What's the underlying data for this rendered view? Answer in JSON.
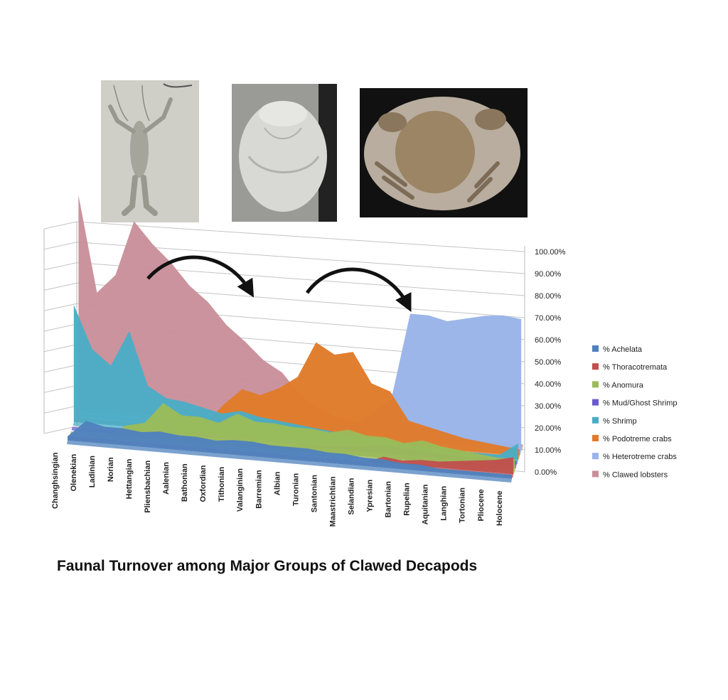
{
  "caption": "Faunal Turnover among Major Groups of Clawed Decapods",
  "photos": [
    {
      "name": "lobster-fossil-photo",
      "subject": "fossil clawed lobster"
    },
    {
      "name": "crab-carapace-fossil-photo",
      "subject": "fossil crab carapace"
    },
    {
      "name": "crab-fossil-photo",
      "subject": "fossil crab with claws"
    }
  ],
  "chart_data": {
    "type": "area",
    "perspective": "3d",
    "title": "",
    "xlabel": "",
    "ylabel": "",
    "ylim": [
      0,
      1
    ],
    "y_ticks": [
      "0.00%",
      "10.00%",
      "20.00%",
      "30.00%",
      "40.00%",
      "50.00%",
      "60.00%",
      "70.00%",
      "80.00%",
      "90.00%",
      "100.00%"
    ],
    "grid": true,
    "legend_position": "right",
    "x_tick_labels": [
      "Changhsingian",
      "Olenekian",
      "Ladinian",
      "Norian",
      "Hettangian",
      "Pliensbachian",
      "Aalenian",
      "Bathonian",
      "Oxfordian",
      "Tithonian",
      "Valanginian",
      "Barremian",
      "Albian",
      "Turonian",
      "Santonian",
      "Maastrichtian",
      "Selandian",
      "Ypresian",
      "Bartonian",
      "Rupelian",
      "Aquitanian",
      "Langhian",
      "Tortonian",
      "Pliocene",
      "Holocene"
    ],
    "x": [
      "Changhsingian",
      "Olenekian",
      "Ladinian",
      "Norian",
      "Hettangian",
      "Pliensbachian",
      "Aalenian",
      "Bathonian",
      "Oxfordian",
      "Tithonian",
      "Valanginian",
      "Barremian",
      "Albian",
      "Turonian",
      "Santonian",
      "Maastrichtian",
      "Selandian",
      "Ypresian",
      "Bartonian",
      "Rupelian",
      "Aquitanian",
      "Langhian",
      "Tortonian",
      "Pliocene",
      "Holocene"
    ],
    "series": [
      {
        "name": "% Achelata",
        "color": "#4f81bd",
        "values": [
          0.02,
          0.1,
          0.08,
          0.08,
          0.07,
          0.08,
          0.07,
          0.07,
          0.06,
          0.07,
          0.07,
          0.06,
          0.06,
          0.06,
          0.05,
          0.05,
          0.04,
          0.04,
          0.03,
          0.03,
          0.02,
          0.02,
          0.02,
          0.02,
          0.02
        ]
      },
      {
        "name": "% Thoracotremata",
        "color": "#c0504d",
        "values": [
          0,
          0,
          0,
          0,
          0,
          0,
          0,
          0,
          0,
          0,
          0,
          0,
          0,
          0,
          0,
          0,
          0,
          0.03,
          0.02,
          0.03,
          0.03,
          0.04,
          0.05,
          0.06,
          0.08
        ]
      },
      {
        "name": "% Anomura",
        "color": "#9bbb59",
        "values": [
          0,
          0,
          0,
          0.05,
          0.07,
          0.17,
          0.12,
          0.12,
          0.1,
          0.15,
          0.12,
          0.12,
          0.11,
          0.11,
          0.1,
          0.12,
          0.1,
          0.1,
          0.08,
          0.1,
          0.08,
          0.07,
          0.06,
          0.05,
          0.05
        ]
      },
      {
        "name": "% Mud/Ghost Shrimp",
        "color": "#6a5acd",
        "values": [
          0,
          0,
          0,
          0,
          0,
          0,
          0,
          0,
          0,
          0,
          0,
          0,
          0,
          0.01,
          0.01,
          0.02,
          0.03,
          0.04,
          0.03,
          0.03,
          0.02,
          0.02,
          0.02,
          0.02,
          0.02
        ]
      },
      {
        "name": "% Shrimp",
        "color": "#4bacc6",
        "values": [
          0.55,
          0.35,
          0.28,
          0.45,
          0.2,
          0.15,
          0.14,
          0.12,
          0.1,
          0.12,
          0.1,
          0.09,
          0.08,
          0.07,
          0.06,
          0.05,
          0.05,
          0.04,
          0.03,
          0.03,
          0.02,
          0.02,
          0.02,
          0.02,
          0.08
        ]
      },
      {
        "name": "% Podotreme crabs",
        "color": "#e07b2a",
        "values": [
          0,
          0,
          0,
          0,
          0,
          0,
          0,
          0.02,
          0.12,
          0.2,
          0.18,
          0.22,
          0.28,
          0.45,
          0.4,
          0.42,
          0.28,
          0.25,
          0.12,
          0.1,
          0.08,
          0.06,
          0.05,
          0.04,
          0.03
        ]
      },
      {
        "name": "% Heterotreme crabs",
        "color": "#99b4e8",
        "values": [
          0,
          0,
          0,
          0,
          0,
          0,
          0,
          0,
          0,
          0,
          0.01,
          0.01,
          0.02,
          0.03,
          0.04,
          0.06,
          0.12,
          0.2,
          0.6,
          0.6,
          0.58,
          0.6,
          0.62,
          0.63,
          0.62
        ]
      },
      {
        "name": "% Clawed lobsters",
        "color": "#c9909a",
        "values": [
          1.0,
          0.55,
          0.64,
          0.9,
          0.8,
          0.72,
          0.62,
          0.55,
          0.45,
          0.38,
          0.3,
          0.25,
          0.15,
          0.1,
          0.06,
          0.05,
          0.03,
          0.03,
          0.02,
          0.02,
          0.02,
          0.01,
          0.01,
          0.01,
          0.01
        ]
      }
    ]
  }
}
